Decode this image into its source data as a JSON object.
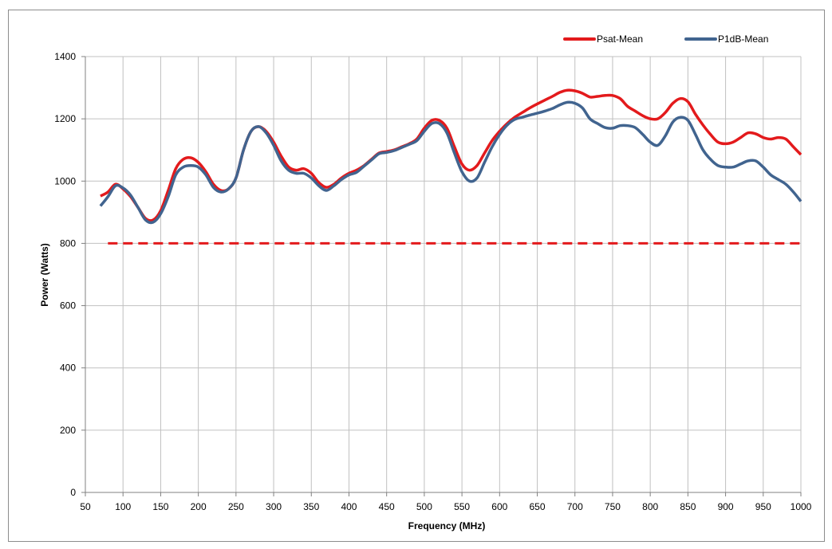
{
  "chart_data": {
    "type": "line",
    "title": "",
    "xlabel": "Frequency (MHz)",
    "ylabel": "Power (Watts)",
    "xlim": [
      50,
      1000
    ],
    "ylim": [
      0,
      1400
    ],
    "x_ticks": [
      50,
      100,
      150,
      200,
      250,
      300,
      350,
      400,
      450,
      500,
      550,
      600,
      650,
      700,
      750,
      800,
      850,
      900,
      950,
      1000
    ],
    "y_ticks": [
      0,
      200,
      400,
      600,
      800,
      1000,
      1200,
      1400
    ],
    "grid": true,
    "legend_position": "top-right",
    "series": [
      {
        "name": "Psat-Mean",
        "color": "#e31a1c",
        "x": [
          70,
          80,
          90,
          100,
          110,
          120,
          130,
          140,
          150,
          160,
          170,
          180,
          190,
          200,
          210,
          220,
          230,
          240,
          250,
          260,
          270,
          280,
          290,
          300,
          310,
          320,
          330,
          340,
          350,
          360,
          370,
          380,
          390,
          400,
          410,
          420,
          430,
          440,
          450,
          460,
          470,
          480,
          490,
          500,
          510,
          520,
          530,
          540,
          550,
          560,
          570,
          580,
          590,
          600,
          610,
          620,
          630,
          640,
          650,
          660,
          670,
          680,
          690,
          700,
          710,
          720,
          730,
          740,
          750,
          760,
          770,
          780,
          790,
          800,
          810,
          820,
          830,
          840,
          850,
          860,
          870,
          880,
          890,
          900,
          910,
          920,
          930,
          940,
          950,
          960,
          970,
          980,
          990,
          1000
        ],
        "y": [
          952,
          965,
          990,
          975,
          950,
          915,
          880,
          875,
          905,
          970,
          1040,
          1070,
          1075,
          1060,
          1030,
          990,
          970,
          975,
          1010,
          1100,
          1160,
          1175,
          1160,
          1125,
          1080,
          1045,
          1035,
          1040,
          1025,
          995,
          980,
          990,
          1010,
          1025,
          1035,
          1050,
          1070,
          1090,
          1095,
          1100,
          1110,
          1120,
          1135,
          1170,
          1195,
          1195,
          1170,
          1110,
          1055,
          1035,
          1050,
          1090,
          1130,
          1160,
          1185,
          1205,
          1220,
          1235,
          1248,
          1260,
          1272,
          1285,
          1292,
          1290,
          1282,
          1270,
          1272,
          1275,
          1275,
          1265,
          1240,
          1225,
          1210,
          1200,
          1200,
          1220,
          1250,
          1265,
          1255,
          1215,
          1180,
          1150,
          1125,
          1120,
          1125,
          1140,
          1155,
          1152,
          1140,
          1135,
          1140,
          1135,
          1110,
          1085
        ]
      },
      {
        "name": "P1dB-Mean",
        "color": "#41648f",
        "x": [
          70,
          80,
          90,
          100,
          110,
          120,
          130,
          140,
          150,
          160,
          170,
          180,
          190,
          200,
          210,
          220,
          230,
          240,
          250,
          260,
          270,
          280,
          290,
          300,
          310,
          320,
          330,
          340,
          350,
          360,
          370,
          380,
          390,
          400,
          410,
          420,
          430,
          440,
          450,
          460,
          470,
          480,
          490,
          500,
          510,
          520,
          530,
          540,
          550,
          560,
          570,
          580,
          590,
          600,
          610,
          620,
          630,
          640,
          650,
          660,
          670,
          680,
          690,
          700,
          710,
          720,
          730,
          740,
          750,
          760,
          770,
          780,
          790,
          800,
          810,
          820,
          830,
          840,
          850,
          860,
          870,
          880,
          890,
          900,
          910,
          920,
          930,
          940,
          950,
          960,
          970,
          980,
          990,
          1000
        ],
        "y": [
          920,
          950,
          985,
          978,
          955,
          915,
          875,
          868,
          895,
          950,
          1020,
          1045,
          1050,
          1045,
          1020,
          980,
          965,
          975,
          1010,
          1100,
          1160,
          1175,
          1155,
          1115,
          1065,
          1035,
          1025,
          1025,
          1010,
          985,
          970,
          985,
          1005,
          1020,
          1028,
          1048,
          1068,
          1088,
          1092,
          1098,
          1108,
          1118,
          1130,
          1160,
          1185,
          1185,
          1155,
          1090,
          1030,
          1000,
          1010,
          1060,
          1110,
          1150,
          1180,
          1198,
          1205,
          1212,
          1218,
          1225,
          1233,
          1245,
          1253,
          1250,
          1235,
          1200,
          1185,
          1172,
          1170,
          1178,
          1178,
          1172,
          1150,
          1125,
          1115,
          1145,
          1190,
          1205,
          1195,
          1150,
          1100,
          1070,
          1050,
          1045,
          1045,
          1055,
          1065,
          1065,
          1045,
          1020,
          1005,
          990,
          965,
          935
        ]
      },
      {
        "name": "",
        "color": "#e31a1c",
        "style": "dashed",
        "x": [
          80,
          1000
        ],
        "y": [
          800,
          800
        ]
      }
    ]
  }
}
